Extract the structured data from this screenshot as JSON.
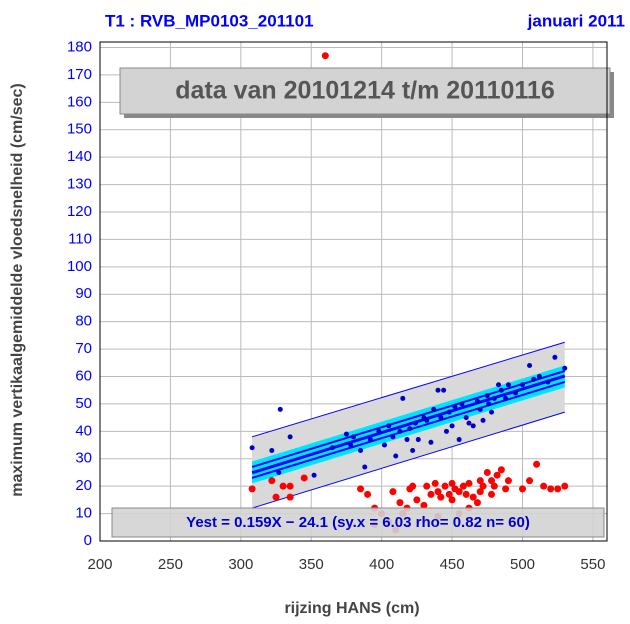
{
  "chart_data": {
    "type": "scatter",
    "title": "T1 : RVB_MP0103_201101",
    "subtitle": "januari 2011",
    "annotation": "data van 20101214 t/m 20110116",
    "equation": "Yest = 0.159X − 24.1 (sy.x = 6.03 rho= 0.82 n= 60)",
    "xlabel": "rijzing HANS (cm)",
    "ylabel": "maximum vertikaalgemiddelde vloedsnelheid (cm/sec)",
    "xlim": [
      200,
      560
    ],
    "ylim": [
      0,
      182
    ],
    "xticks": [
      200,
      250,
      300,
      350,
      400,
      450,
      500,
      550
    ],
    "yticks": [
      0,
      10,
      20,
      30,
      40,
      50,
      60,
      70,
      80,
      90,
      100,
      110,
      120,
      130,
      140,
      150,
      160,
      170,
      180
    ],
    "grid": true,
    "bands": [
      {
        "color": "#d9d9d9",
        "x": [
          308,
          530
        ],
        "upper": [
          38,
          72.5
        ],
        "lower": [
          12,
          47
        ]
      },
      {
        "color": "#00e5ff",
        "x": [
          308,
          530
        ],
        "upper": [
          29,
          64
        ],
        "lower": [
          21,
          56
        ]
      }
    ],
    "fit_lines": [
      {
        "color": "#0000ff",
        "width": 1,
        "x": [
          308,
          530
        ],
        "values": [
          38,
          72.5
        ]
      },
      {
        "color": "#0000ff",
        "width": 1,
        "x": [
          308,
          530
        ],
        "values": [
          12,
          47
        ]
      },
      {
        "color": "#0000ff",
        "width": 2,
        "x": [
          308,
          530
        ],
        "values": [
          27,
          62
        ]
      },
      {
        "color": "#0000ff",
        "width": 2,
        "x": [
          308,
          530
        ],
        "values": [
          23,
          58
        ]
      },
      {
        "color": "#0000ff",
        "width": 3,
        "x": [
          308,
          530
        ],
        "values": [
          24.9,
          60.2
        ]
      }
    ],
    "series": [
      {
        "color": "#ff0000",
        "x": [
          308,
          322,
          325,
          330,
          335,
          335,
          345,
          360,
          385,
          390,
          395,
          400,
          405,
          408,
          410,
          413,
          415,
          418,
          420,
          422,
          425,
          430,
          432,
          435,
          438,
          440,
          442,
          445,
          448,
          450,
          452,
          455,
          458,
          460,
          462,
          465,
          468,
          470,
          472,
          475,
          478,
          480,
          482,
          485,
          488,
          490,
          500,
          505,
          510,
          515,
          520,
          525,
          530,
          455,
          462,
          440,
          395,
          470,
          478,
          450
        ],
        "values": [
          19,
          22,
          16,
          20,
          16,
          20,
          23,
          177,
          19,
          17,
          12,
          10,
          7,
          18,
          4,
          14,
          10,
          12,
          19,
          20,
          15,
          13,
          20,
          17,
          21,
          18,
          16,
          20,
          17,
          15,
          19,
          18,
          20,
          17,
          21,
          16,
          14,
          22,
          20,
          25,
          22,
          20,
          24,
          26,
          19,
          22,
          19,
          22,
          28,
          20,
          19,
          19,
          20,
          10,
          12,
          9,
          6,
          18,
          17,
          21
        ]
      },
      {
        "color": "#0000cc",
        "x": [
          308,
          322,
          327,
          328,
          335,
          352,
          365,
          375,
          378,
          380,
          385,
          388,
          392,
          398,
          402,
          405,
          408,
          410,
          413,
          415,
          418,
          420,
          422,
          424,
          426,
          430,
          432,
          435,
          437,
          440,
          442,
          444,
          446,
          448,
          450,
          452,
          455,
          457,
          460,
          462,
          465,
          468,
          470,
          472,
          475,
          476,
          478,
          480,
          483,
          485,
          488,
          490,
          495,
          500,
          505,
          508,
          512,
          518,
          523,
          530
        ],
        "values": [
          34,
          33,
          25,
          48,
          38,
          24,
          34,
          39,
          35,
          38,
          33,
          27,
          37,
          40,
          35,
          42,
          38,
          31,
          40,
          52,
          37,
          41,
          33,
          43,
          37,
          45,
          44,
          36,
          48,
          55,
          45,
          55,
          40,
          47,
          42,
          49,
          37,
          50,
          45,
          43,
          42,
          51,
          48,
          44,
          53,
          50,
          47,
          52,
          57,
          55,
          52,
          57,
          54,
          57,
          64,
          59,
          60,
          58,
          67,
          63
        ]
      }
    ]
  }
}
